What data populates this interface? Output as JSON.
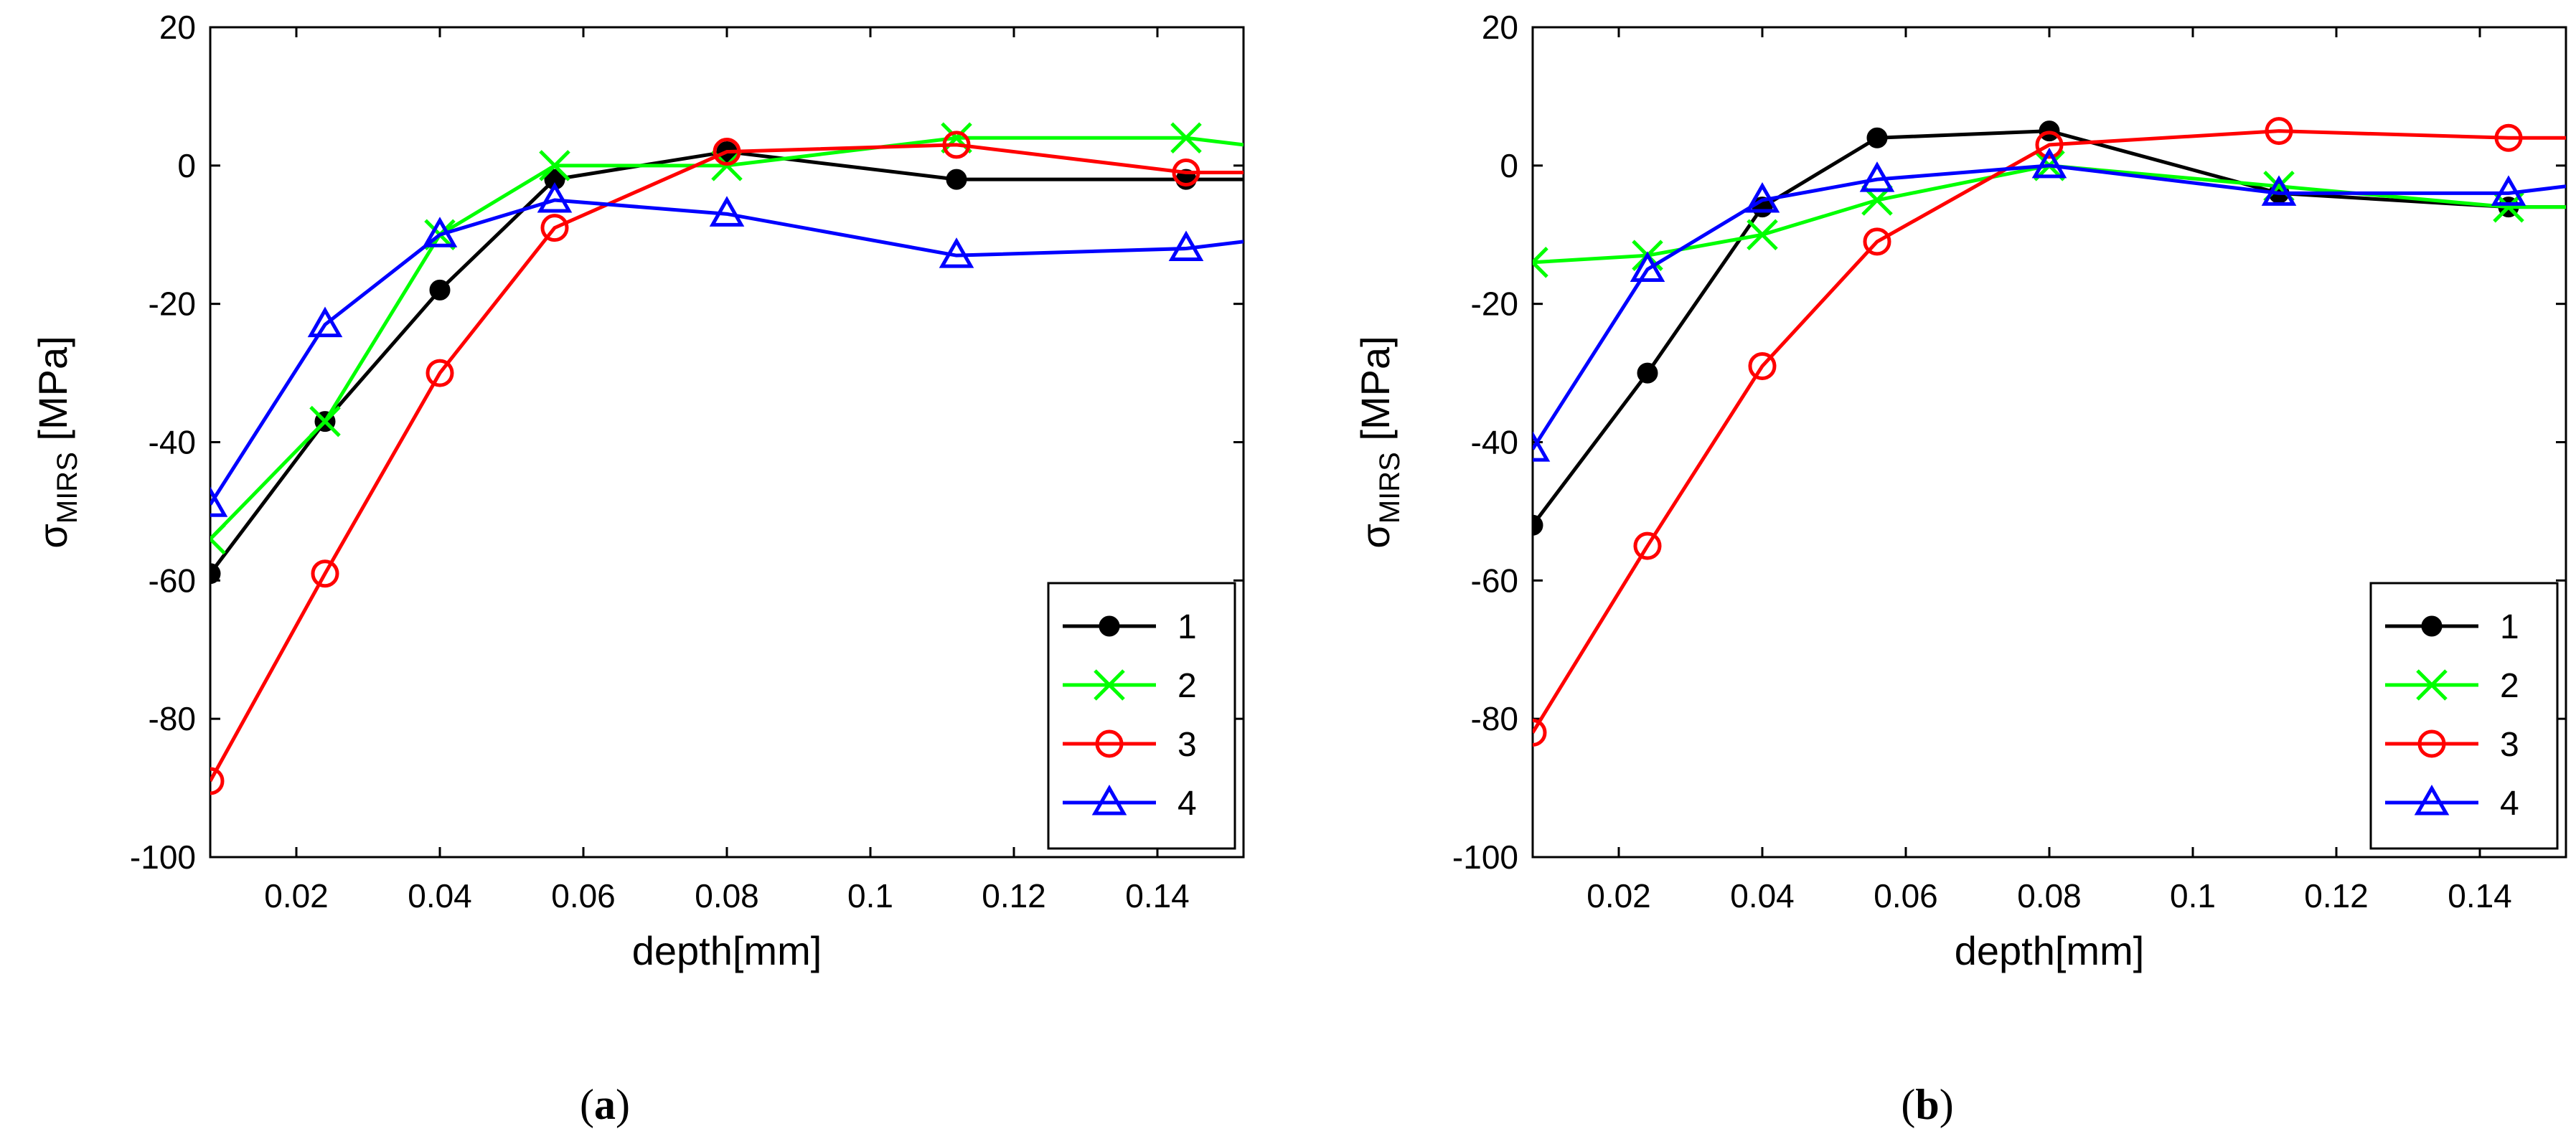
{
  "chart_data": [
    {
      "type": "line",
      "caption": "a",
      "xlabel": "depth[mm]",
      "ylabel_symbol": "σ",
      "ylabel_subscript": "MIRS",
      "ylabel_unit": " [MPa]",
      "xlim": [
        0.008,
        0.152
      ],
      "ylim": [
        -100,
        20
      ],
      "xticks": [
        0.02,
        0.04,
        0.06,
        0.08,
        0.1,
        0.12,
        0.14
      ],
      "xtick_labels": [
        "0.02",
        "0.04",
        "0.06",
        "0.08",
        "0.1",
        "0.12",
        "0.14"
      ],
      "yticks": [
        -100,
        -80,
        -60,
        -40,
        -20,
        0,
        20
      ],
      "ytick_labels": [
        "-100",
        "-80",
        "-60",
        "-40",
        "-20",
        "0",
        "20"
      ],
      "legend_position": "bottom-right",
      "x": [
        0.008,
        0.024,
        0.04,
        0.056,
        0.08,
        0.112,
        0.144,
        0.152
      ],
      "series": [
        {
          "name": "1",
          "color": "#000000",
          "marker": "filled-circle",
          "values": [
            -59,
            -37,
            -18,
            -2,
            2,
            -2,
            -2,
            -2
          ]
        },
        {
          "name": "2",
          "color": "#00ff00",
          "marker": "x",
          "values": [
            -54,
            -37,
            -10,
            0,
            0,
            4,
            4,
            3
          ]
        },
        {
          "name": "3",
          "color": "#ff0000",
          "marker": "open-circle",
          "values": [
            -89,
            -59,
            -30,
            -9,
            2,
            3,
            -1,
            -1
          ]
        },
        {
          "name": "4",
          "color": "#0000ff",
          "marker": "triangle",
          "values": [
            -49,
            -23,
            -10,
            -5,
            -7,
            -13,
            -12,
            -11
          ]
        }
      ]
    },
    {
      "type": "line",
      "caption": "b",
      "xlabel": "depth[mm]",
      "ylabel_symbol": "σ",
      "ylabel_subscript": "MIRS",
      "ylabel_unit": " [MPa]",
      "xlim": [
        0.008,
        0.152
      ],
      "ylim": [
        -100,
        20
      ],
      "xticks": [
        0.02,
        0.04,
        0.06,
        0.08,
        0.1,
        0.12,
        0.14
      ],
      "xtick_labels": [
        "0.02",
        "0.04",
        "0.06",
        "0.08",
        "0.1",
        "0.12",
        "0.14"
      ],
      "yticks": [
        -100,
        -80,
        -60,
        -40,
        -20,
        0,
        20
      ],
      "ytick_labels": [
        "-100",
        "-80",
        "-60",
        "-40",
        "-20",
        "0",
        "20"
      ],
      "legend_position": "bottom-right",
      "x": [
        0.008,
        0.024,
        0.04,
        0.056,
        0.08,
        0.112,
        0.144,
        0.152
      ],
      "series": [
        {
          "name": "1",
          "color": "#000000",
          "marker": "filled-circle",
          "values": [
            -52,
            -30,
            -6,
            4,
            5,
            -4,
            -6,
            -6
          ]
        },
        {
          "name": "2",
          "color": "#00ff00",
          "marker": "x",
          "values": [
            -14,
            -13,
            -10,
            -5,
            0,
            -3,
            -6,
            -6
          ]
        },
        {
          "name": "3",
          "color": "#ff0000",
          "marker": "open-circle",
          "values": [
            -82,
            -55,
            -29,
            -11,
            3,
            5,
            4,
            4
          ]
        },
        {
          "name": "4",
          "color": "#0000ff",
          "marker": "triangle",
          "values": [
            -41,
            -15,
            -5,
            -2,
            0,
            -4,
            -4,
            -3
          ]
        }
      ]
    }
  ]
}
